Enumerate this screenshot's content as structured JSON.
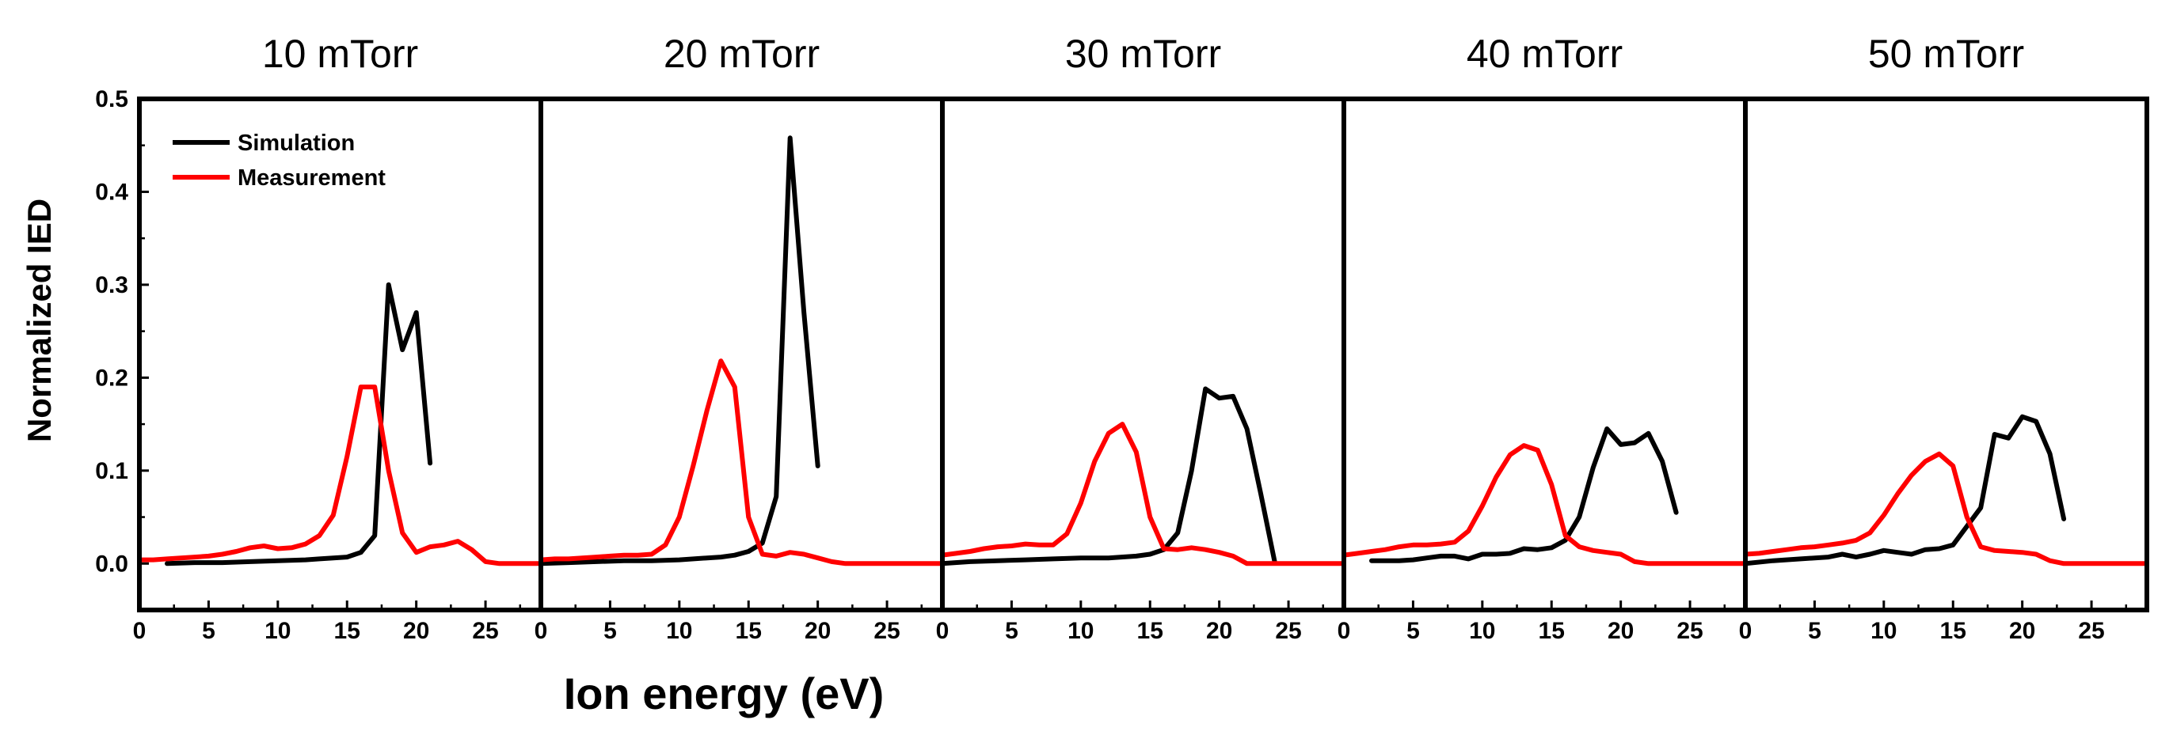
{
  "chart_data": {
    "type": "line",
    "xlabel": "Ion energy (eV)",
    "ylabel": "Normalized IED",
    "xlim": [
      0,
      29
    ],
    "ylim": [
      -0.05,
      0.5
    ],
    "xticks": [
      0,
      5,
      10,
      15,
      20,
      25
    ],
    "yticks": [
      0.0,
      0.1,
      0.2,
      0.3,
      0.4,
      0.5
    ],
    "legend": {
      "location": "top-left of first panel",
      "entries": [
        {
          "name": "Simulation",
          "color": "#000000"
        },
        {
          "name": "Measurement",
          "color": "#ff0000"
        }
      ]
    },
    "panels": [
      {
        "title": "10 mTorr",
        "series": [
          {
            "name": "Simulation",
            "color": "#000000",
            "x": [
              2,
              4,
              6,
              8,
              10,
              12,
              13,
              14,
              15,
              16,
              17,
              18,
              19,
              20,
              21
            ],
            "y": [
              0.0,
              0.001,
              0.001,
              0.002,
              0.003,
              0.004,
              0.005,
              0.006,
              0.007,
              0.012,
              0.03,
              0.3,
              0.23,
              0.27,
              0.108
            ]
          },
          {
            "name": "Measurement",
            "color": "#ff0000",
            "x": [
              0,
              1,
              2,
              3,
              4,
              5,
              6,
              7,
              8,
              9,
              10,
              11,
              12,
              13,
              14,
              15,
              16,
              17,
              18,
              19,
              20,
              21,
              22,
              23,
              24,
              25,
              26,
              27,
              28,
              29
            ],
            "y": [
              0.004,
              0.004,
              0.005,
              0.006,
              0.007,
              0.008,
              0.01,
              0.013,
              0.017,
              0.019,
              0.016,
              0.017,
              0.021,
              0.03,
              0.052,
              0.115,
              0.19,
              0.19,
              0.1,
              0.033,
              0.012,
              0.018,
              0.02,
              0.024,
              0.015,
              0.002,
              0.0,
              0.0,
              0.0,
              0.0
            ]
          }
        ]
      },
      {
        "title": "20 mTorr",
        "series": [
          {
            "name": "Simulation",
            "color": "#000000",
            "x": [
              0,
              2,
              4,
              6,
              8,
              10,
              12,
              13,
              14,
              15,
              16,
              17,
              18,
              19,
              20
            ],
            "y": [
              0.0,
              0.001,
              0.002,
              0.003,
              0.003,
              0.004,
              0.006,
              0.007,
              0.009,
              0.013,
              0.022,
              0.072,
              0.458,
              0.27,
              0.105
            ]
          },
          {
            "name": "Measurement",
            "color": "#ff0000",
            "x": [
              0,
              1,
              2,
              3,
              4,
              5,
              6,
              7,
              8,
              9,
              10,
              11,
              12,
              13,
              14,
              15,
              16,
              17,
              18,
              19,
              20,
              21,
              22,
              23,
              24,
              25,
              26,
              27,
              28,
              29
            ],
            "y": [
              0.004,
              0.005,
              0.005,
              0.006,
              0.007,
              0.008,
              0.009,
              0.009,
              0.01,
              0.02,
              0.05,
              0.105,
              0.165,
              0.218,
              0.19,
              0.05,
              0.01,
              0.008,
              0.012,
              0.01,
              0.006,
              0.002,
              0.0,
              0.0,
              0.0,
              0.0,
              0.0,
              0.0,
              0.0,
              0.0
            ]
          }
        ]
      },
      {
        "title": "30 mTorr",
        "series": [
          {
            "name": "Simulation",
            "color": "#000000",
            "x": [
              0,
              2,
              4,
              6,
              8,
              10,
              12,
              14,
              15,
              16,
              17,
              18,
              19,
              20,
              21,
              22,
              23,
              24
            ],
            "y": [
              0.0,
              0.002,
              0.003,
              0.004,
              0.005,
              0.006,
              0.006,
              0.008,
              0.01,
              0.015,
              0.033,
              0.1,
              0.188,
              0.178,
              0.18,
              0.145,
              0.075,
              0.002
            ]
          },
          {
            "name": "Measurement",
            "color": "#ff0000",
            "x": [
              0,
              1,
              2,
              3,
              4,
              5,
              6,
              7,
              8,
              9,
              10,
              11,
              12,
              13,
              14,
              15,
              16,
              17,
              18,
              19,
              20,
              21,
              22,
              23,
              24,
              25,
              26,
              27,
              28,
              29
            ],
            "y": [
              0.009,
              0.011,
              0.013,
              0.016,
              0.018,
              0.019,
              0.021,
              0.02,
              0.02,
              0.032,
              0.065,
              0.11,
              0.14,
              0.15,
              0.12,
              0.05,
              0.016,
              0.015,
              0.017,
              0.015,
              0.012,
              0.008,
              0.0,
              0.0,
              0.0,
              0.0,
              0.0,
              0.0,
              0.0,
              0.0
            ]
          }
        ]
      },
      {
        "title": "40 mTorr",
        "series": [
          {
            "name": "Simulation",
            "color": "#000000",
            "x": [
              2,
              3,
              4,
              5,
              6,
              7,
              8,
              9,
              10,
              11,
              12,
              13,
              14,
              15,
              16,
              17,
              18,
              19,
              20,
              21,
              22,
              23,
              24
            ],
            "y": [
              0.003,
              0.003,
              0.003,
              0.004,
              0.006,
              0.008,
              0.008,
              0.005,
              0.01,
              0.01,
              0.011,
              0.016,
              0.015,
              0.017,
              0.025,
              0.05,
              0.103,
              0.145,
              0.128,
              0.13,
              0.14,
              0.11,
              0.055
            ]
          },
          {
            "name": "Measurement",
            "color": "#ff0000",
            "x": [
              0,
              1,
              2,
              3,
              4,
              5,
              6,
              7,
              8,
              9,
              10,
              11,
              12,
              13,
              14,
              15,
              16,
              17,
              18,
              19,
              20,
              21,
              22,
              23,
              24,
              25,
              26,
              27,
              28,
              29
            ],
            "y": [
              0.009,
              0.011,
              0.013,
              0.015,
              0.018,
              0.02,
              0.02,
              0.021,
              0.023,
              0.035,
              0.062,
              0.093,
              0.117,
              0.127,
              0.122,
              0.085,
              0.03,
              0.018,
              0.014,
              0.012,
              0.01,
              0.002,
              0.0,
              0.0,
              0.0,
              0.0,
              0.0,
              0.0,
              0.0,
              0.0
            ]
          }
        ]
      },
      {
        "title": "50 mTorr",
        "series": [
          {
            "name": "Simulation",
            "color": "#000000",
            "x": [
              0,
              2,
              4,
              6,
              7,
              8,
              9,
              10,
              11,
              12,
              13,
              14,
              15,
              16,
              17,
              18,
              19,
              20,
              21,
              22,
              23
            ],
            "y": [
              0.0,
              0.003,
              0.005,
              0.007,
              0.01,
              0.007,
              0.01,
              0.014,
              0.012,
              0.01,
              0.015,
              0.016,
              0.02,
              0.04,
              0.06,
              0.139,
              0.135,
              0.158,
              0.153,
              0.118,
              0.048
            ]
          },
          {
            "name": "Measurement",
            "color": "#ff0000",
            "x": [
              0,
              1,
              2,
              3,
              4,
              5,
              6,
              7,
              8,
              9,
              10,
              11,
              12,
              13,
              14,
              15,
              16,
              17,
              18,
              19,
              20,
              21,
              22,
              23,
              24,
              25,
              26,
              27,
              28,
              29
            ],
            "y": [
              0.01,
              0.011,
              0.013,
              0.015,
              0.017,
              0.018,
              0.02,
              0.022,
              0.025,
              0.033,
              0.052,
              0.075,
              0.095,
              0.11,
              0.118,
              0.105,
              0.05,
              0.018,
              0.014,
              0.013,
              0.012,
              0.01,
              0.003,
              0.0,
              0.0,
              0.0,
              0.0,
              0.0,
              0.0,
              0.0
            ]
          }
        ]
      }
    ]
  }
}
